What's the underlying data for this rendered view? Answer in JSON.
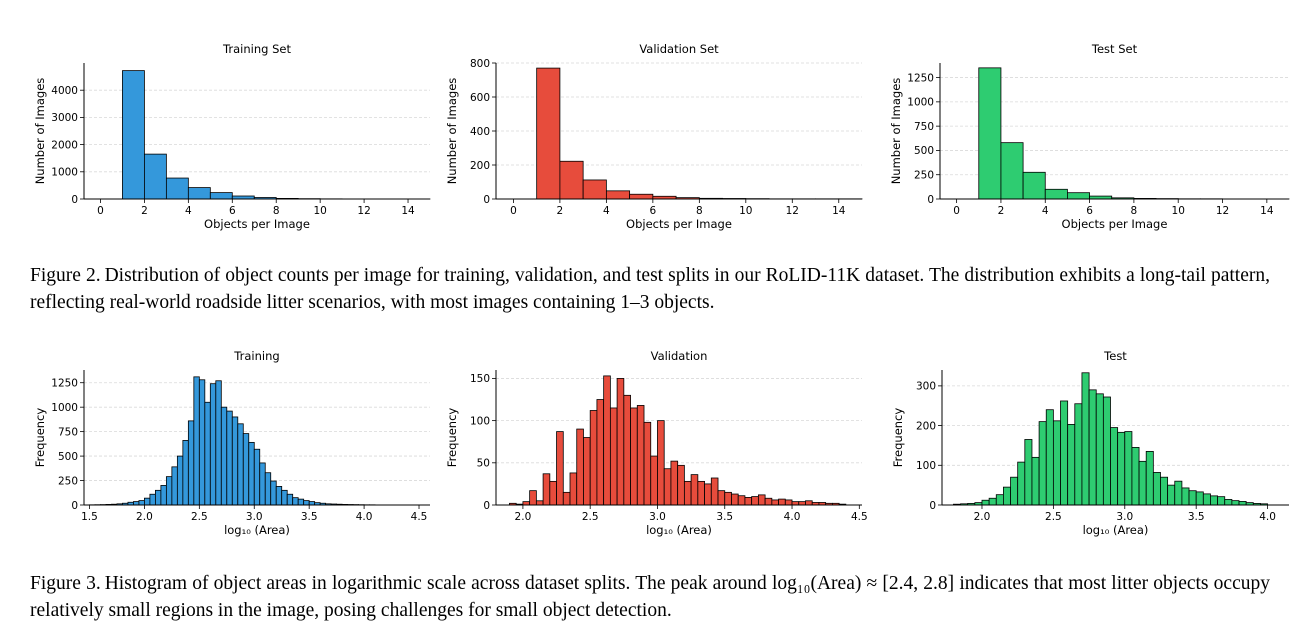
{
  "figure2": {
    "caption_label": "Figure 2.",
    "caption_text": "Distribution of object counts per image for training, validation, and test splits in our RoLID-11K dataset. The distribution exhibits a long-tail pattern, reflecting real-world roadside litter scenarios, with most images containing 1–3 objects."
  },
  "figure3": {
    "caption_label": "Figure 3.",
    "caption_text": "Histogram of object areas in logarithmic scale across dataset splits. The peak around log₁₀(Area) ≈ [2.4, 2.8] indicates that most litter objects occupy relatively small regions in the image, posing challenges for small object detection."
  },
  "colors": {
    "training": "#3498db",
    "validation": "#e74c3c",
    "test": "#2ecc71"
  },
  "chart_data": [
    {
      "id": "count-train",
      "type": "bar",
      "title": "Training Set",
      "xlabel": "Objects per Image",
      "ylabel": "Number of Images",
      "color": "#3498db",
      "xlim": [
        -0.75,
        15
      ],
      "ylim": [
        0,
        5000
      ],
      "xticks": [
        0,
        2,
        4,
        6,
        8,
        10,
        12,
        14
      ],
      "yticks": [
        0,
        1000,
        2000,
        3000,
        4000
      ],
      "bin_edges": [
        1,
        2,
        3,
        4,
        5,
        6,
        7,
        8,
        9,
        10,
        11,
        12,
        13,
        14,
        15
      ],
      "values": [
        4720,
        1650,
        770,
        420,
        235,
        110,
        55,
        22,
        12,
        6,
        3,
        2,
        1,
        1
      ]
    },
    {
      "id": "count-val",
      "type": "bar",
      "title": "Validation Set",
      "xlabel": "Objects per Image",
      "ylabel": "Number of Images",
      "color": "#e74c3c",
      "xlim": [
        -0.75,
        15
      ],
      "ylim": [
        0,
        800
      ],
      "xticks": [
        0,
        2,
        4,
        6,
        8,
        10,
        12,
        14
      ],
      "yticks": [
        0,
        200,
        400,
        600,
        800
      ],
      "bin_edges": [
        1,
        2,
        3,
        4,
        5,
        6,
        7,
        8,
        9,
        10,
        11,
        12,
        13,
        14,
        15
      ],
      "values": [
        770,
        222,
        112,
        48,
        28,
        16,
        8,
        4,
        3,
        2,
        1,
        1,
        1,
        1
      ]
    },
    {
      "id": "count-test",
      "type": "bar",
      "title": "Test Set",
      "xlabel": "Objects per Image",
      "ylabel": "Number of Images",
      "color": "#2ecc71",
      "xlim": [
        -0.75,
        15
      ],
      "ylim": [
        0,
        1400
      ],
      "xticks": [
        0,
        2,
        4,
        6,
        8,
        10,
        12,
        14
      ],
      "yticks": [
        0,
        250,
        500,
        750,
        1000,
        1250
      ],
      "bin_edges": [
        1,
        2,
        3,
        4,
        5,
        6,
        7,
        8,
        9,
        10,
        11,
        12,
        13,
        14,
        15
      ],
      "values": [
        1350,
        580,
        275,
        100,
        65,
        30,
        12,
        6,
        4,
        2,
        2,
        1,
        1,
        1
      ]
    },
    {
      "id": "area-train",
      "type": "bar",
      "title": "Training",
      "xlabel": "log₁₀ (Area)",
      "ylabel": "Frequency",
      "color": "#3498db",
      "xlim": [
        1.45,
        4.6
      ],
      "ylim": [
        0,
        1380
      ],
      "xticks": [
        1.5,
        2.0,
        2.5,
        3.0,
        3.5,
        4.0,
        4.5
      ],
      "yticks": [
        0,
        250,
        500,
        750,
        1000,
        1250
      ],
      "bin_start": 1.5,
      "bin_width": 0.05,
      "values": [
        2,
        3,
        4,
        6,
        8,
        12,
        18,
        28,
        35,
        45,
        70,
        110,
        150,
        200,
        290,
        390,
        500,
        660,
        860,
        1310,
        1280,
        1050,
        1240,
        1270,
        1000,
        960,
        900,
        830,
        730,
        640,
        570,
        430,
        330,
        245,
        190,
        150,
        110,
        75,
        60,
        45,
        35,
        24,
        18,
        12,
        10,
        8,
        6,
        5,
        4,
        3,
        2,
        2
      ]
    },
    {
      "id": "area-val",
      "type": "bar",
      "title": "Validation",
      "xlabel": "log₁₀ (Area)",
      "ylabel": "Frequency",
      "color": "#e74c3c",
      "xlim": [
        1.8,
        4.52
      ],
      "ylim": [
        0,
        160
      ],
      "xticks": [
        2.0,
        2.5,
        3.0,
        3.5,
        4.0,
        4.5
      ],
      "yticks": [
        0,
        50,
        100,
        150
      ],
      "bin_start": 1.9,
      "bin_width": 0.05,
      "values": [
        2,
        1,
        4,
        17,
        5,
        37,
        28,
        87,
        15,
        38,
        90,
        80,
        112,
        125,
        153,
        115,
        150,
        130,
        115,
        118,
        98,
        58,
        100,
        43,
        52,
        47,
        28,
        36,
        28,
        25,
        32,
        17,
        15,
        13,
        11,
        9,
        10,
        12,
        8,
        6,
        7,
        6,
        4,
        4,
        5,
        3,
        3,
        2,
        2,
        1
      ]
    },
    {
      "id": "area-test",
      "type": "bar",
      "title": "Test",
      "xlabel": "log₁₀ (Area)",
      "ylabel": "Frequency",
      "color": "#2ecc71",
      "xlim": [
        1.72,
        4.15
      ],
      "ylim": [
        0,
        340
      ],
      "xticks": [
        2.0,
        2.5,
        3.0,
        3.5,
        4.0
      ],
      "yticks": [
        0,
        100,
        200,
        300
      ],
      "bin_start": 1.8,
      "bin_width": 0.05,
      "values": [
        2,
        3,
        4,
        6,
        12,
        17,
        26,
        45,
        70,
        108,
        165,
        120,
        210,
        240,
        212,
        262,
        203,
        255,
        333,
        290,
        280,
        272,
        195,
        183,
        185,
        145,
        110,
        135,
        82,
        70,
        50,
        60,
        43,
        36,
        33,
        28,
        23,
        21,
        14,
        11,
        9,
        6,
        4,
        3
      ]
    }
  ]
}
